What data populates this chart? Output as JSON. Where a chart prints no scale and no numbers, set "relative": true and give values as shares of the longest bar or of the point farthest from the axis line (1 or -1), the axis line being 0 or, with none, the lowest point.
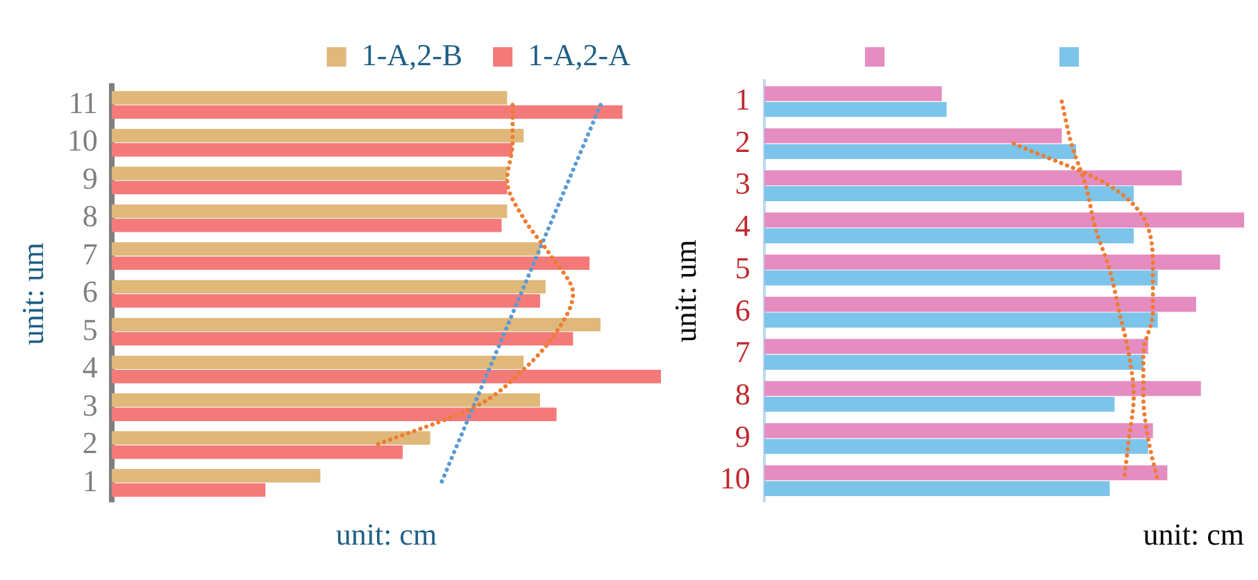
{
  "chart_data": [
    {
      "type": "bar",
      "orientation": "horizontal",
      "relative": true,
      "grid": false,
      "legend": "top right",
      "ylabel": "unit: um",
      "xlabel": "unit: cm",
      "categories": [
        "11",
        "10",
        "9",
        "8",
        "7",
        "6",
        "5",
        "4",
        "3",
        "2",
        "1"
      ],
      "series": [
        {
          "name": "1-A,2-B",
          "color": "#e0b87a",
          "values": [
            0.72,
            0.75,
            0.72,
            0.72,
            0.78,
            0.79,
            0.89,
            0.75,
            0.78,
            0.58,
            0.38
          ]
        },
        {
          "name": "1-A,2-A",
          "color": "#f47a7a",
          "values": [
            0.93,
            0.73,
            0.72,
            0.71,
            0.87,
            0.78,
            0.84,
            1,
            0.81,
            0.53,
            0.28
          ]
        },
        {
          "type": "line",
          "line_style": "dotted",
          "color": "#ed7d31",
          "values": [
            0.73,
            0.73,
            0.72,
            0.75,
            0.8,
            0.84,
            0.81,
            0.75,
            0.66,
            0.48,
            null
          ]
        },
        {
          "type": "line",
          "line_style": "dotted",
          "color": "#5b9bd5",
          "values": [
            0.89,
            null,
            null,
            null,
            null,
            null,
            null,
            null,
            null,
            null,
            0.6
          ]
        }
      ]
    },
    {
      "type": "bar",
      "orientation": "horizontal",
      "relative": true,
      "grid": false,
      "ylabel": "unit: um",
      "xlabel": "unit: cm",
      "categories": [
        "1",
        "2",
        "3",
        "4",
        "5",
        "6",
        "7",
        "8",
        "9",
        "10"
      ],
      "series": [
        {
          "color": "#e58cc0",
          "values": [
            0.37,
            0.62,
            0.87,
            1,
            0.95,
            0.9,
            0.8,
            0.91,
            0.81,
            0.84
          ]
        },
        {
          "color": "#7cc4ea",
          "values": [
            0.38,
            0.65,
            0.77,
            0.77,
            0.82,
            0.82,
            0.79,
            0.73,
            0.8,
            0.72
          ]
        },
        {
          "type": "line",
          "line_style": "dotted",
          "color": "#ed7d31",
          "values": [
            0.62,
            0.64,
            0.67,
            0.69,
            0.72,
            0.74,
            0.76,
            0.77,
            0.76,
            0.75
          ]
        },
        {
          "type": "line",
          "line_style": "dotted",
          "color": "#ed7d31",
          "values": [
            null,
            0.52,
            0.72,
            0.8,
            0.81,
            0.81,
            0.79,
            0.79,
            0.8,
            0.82
          ]
        }
      ]
    }
  ]
}
